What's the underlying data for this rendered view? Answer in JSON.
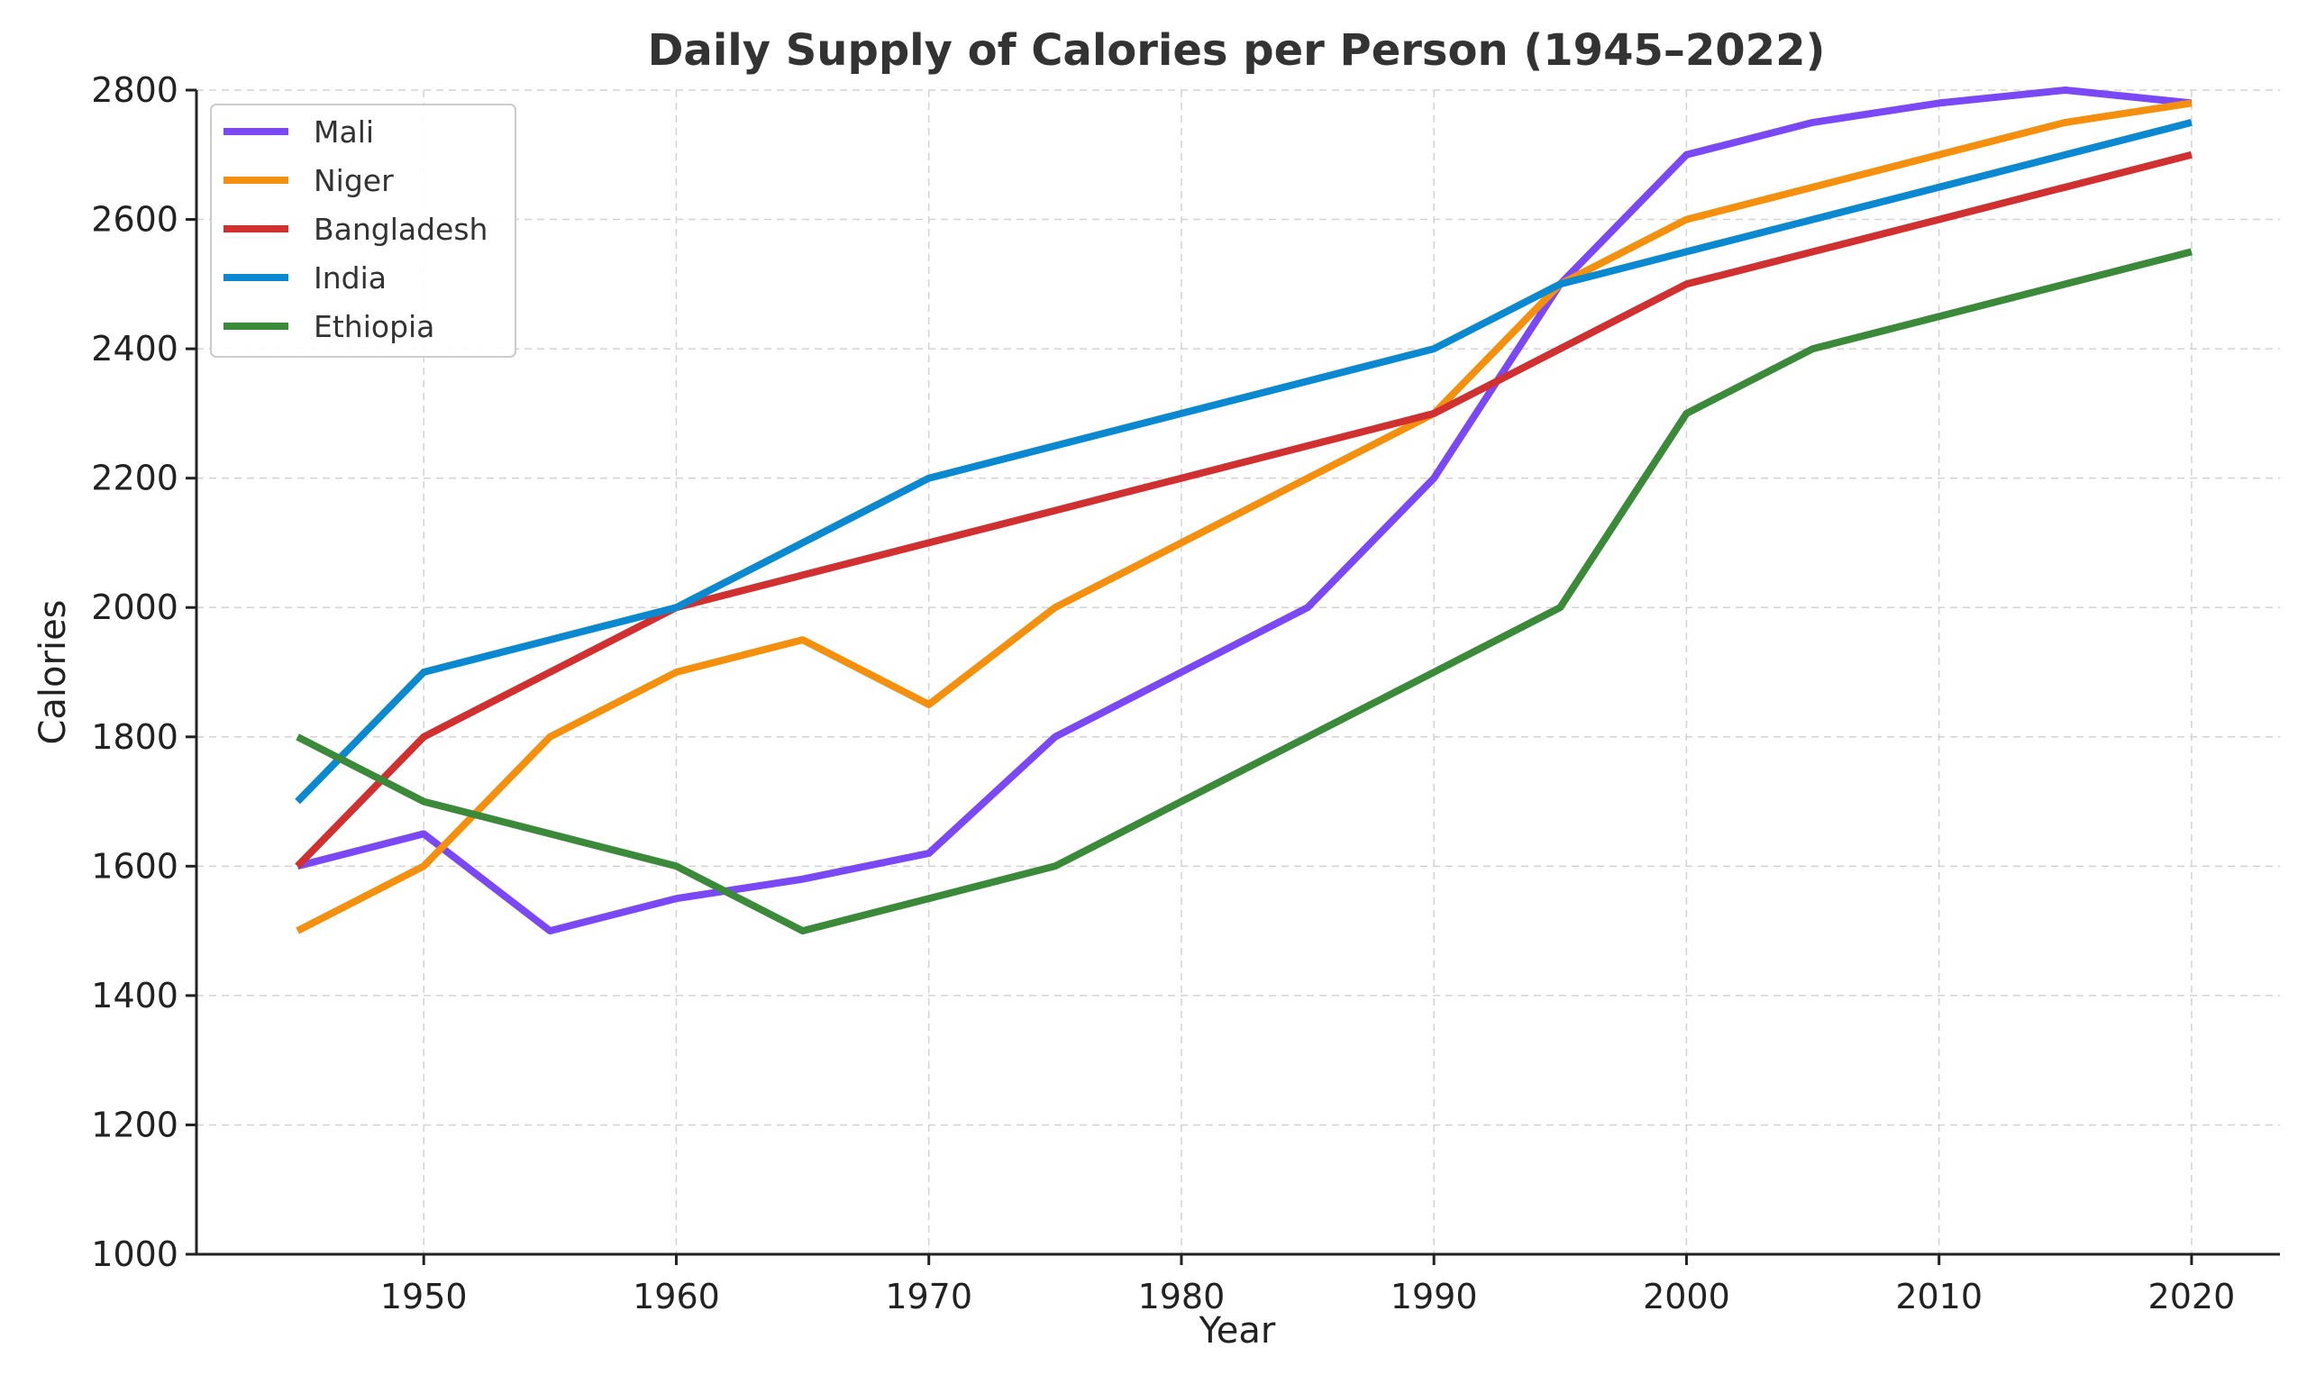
{
  "chart_data": {
    "type": "line",
    "title": "Daily Supply of Calories per Person (1945–2022)",
    "xlabel": "Year",
    "ylabel": "Calories",
    "xlim": [
      1941,
      2023.5
    ],
    "ylim": [
      1000,
      2800
    ],
    "x_ticks": [
      1950,
      1960,
      1970,
      1980,
      1990,
      2000,
      2010,
      2020
    ],
    "y_ticks": [
      1000,
      1200,
      1400,
      1600,
      1800,
      2000,
      2200,
      2400,
      2600,
      2800
    ],
    "grid": true,
    "legend_position": "top-left",
    "x": [
      1945,
      1950,
      1955,
      1960,
      1965,
      1970,
      1975,
      1980,
      1985,
      1990,
      1995,
      2000,
      2005,
      2010,
      2015,
      2020
    ],
    "series": [
      {
        "name": "Mali",
        "color": "#7a48f5",
        "values": [
          1600,
          1650,
          1500,
          1550,
          1580,
          1620,
          1800,
          1900,
          2000,
          2200,
          2500,
          2700,
          2750,
          2780,
          2800,
          2780
        ]
      },
      {
        "name": "Niger",
        "color": "#f5900f",
        "values": [
          1500,
          1600,
          1800,
          1900,
          1950,
          1850,
          2000,
          2100,
          2200,
          2300,
          2500,
          2600,
          2650,
          2700,
          2750,
          2780
        ]
      },
      {
        "name": "Bangladesh",
        "color": "#d03030",
        "values": [
          1600,
          1800,
          1900,
          2000,
          2050,
          2100,
          2150,
          2200,
          2250,
          2300,
          2400,
          2500,
          2550,
          2600,
          2650,
          2700
        ]
      },
      {
        "name": "India",
        "color": "#0a88d0",
        "values": [
          1700,
          1900,
          1950,
          2000,
          2100,
          2200,
          2250,
          2300,
          2350,
          2400,
          2500,
          2550,
          2600,
          2650,
          2700,
          2750
        ]
      },
      {
        "name": "Ethiopia",
        "color": "#3a8a3a",
        "values": [
          1800,
          1700,
          1650,
          1600,
          1500,
          1550,
          1600,
          1700,
          1800,
          1900,
          2000,
          2300,
          2400,
          2450,
          2500,
          2550
        ]
      }
    ]
  }
}
